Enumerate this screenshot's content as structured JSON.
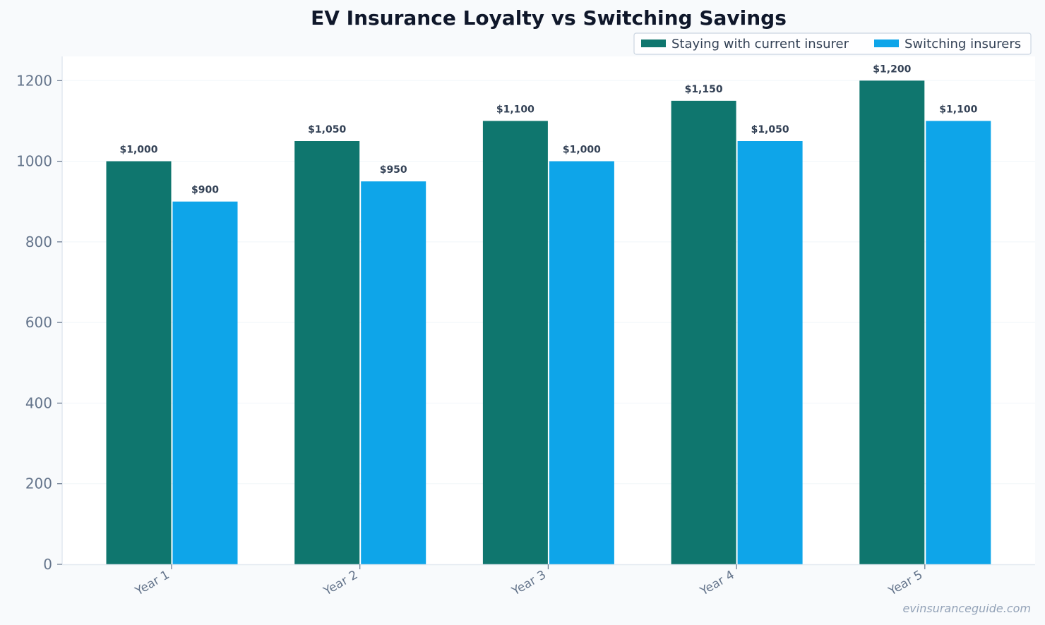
{
  "chart_data": {
    "type": "bar",
    "title": "EV Insurance Loyalty vs Switching Savings",
    "xlabel": "",
    "ylabel": "",
    "categories": [
      "Year 1",
      "Year 2",
      "Year 3",
      "Year 4",
      "Year 5"
    ],
    "series": [
      {
        "name": "Staying with current insurer",
        "values": [
          1000,
          1050,
          1100,
          1150,
          1200
        ],
        "labels": [
          "$1,000",
          "$1,050",
          "$1,100",
          "$1,150",
          "$1,200"
        ],
        "color": "#0f766e"
      },
      {
        "name": "Switching insurers",
        "values": [
          900,
          950,
          1000,
          1050,
          1100
        ],
        "labels": [
          "$900",
          "$950",
          "$1,000",
          "$1,050",
          "$1,100"
        ],
        "color": "#0ea5e9"
      }
    ],
    "ylim": [
      0,
      1260
    ],
    "yticks": [
      "0",
      "200",
      "400",
      "600",
      "800",
      "1000",
      "1200"
    ],
    "grid": true,
    "legend": "top-right"
  },
  "watermark": "evinsuranceguide.com"
}
